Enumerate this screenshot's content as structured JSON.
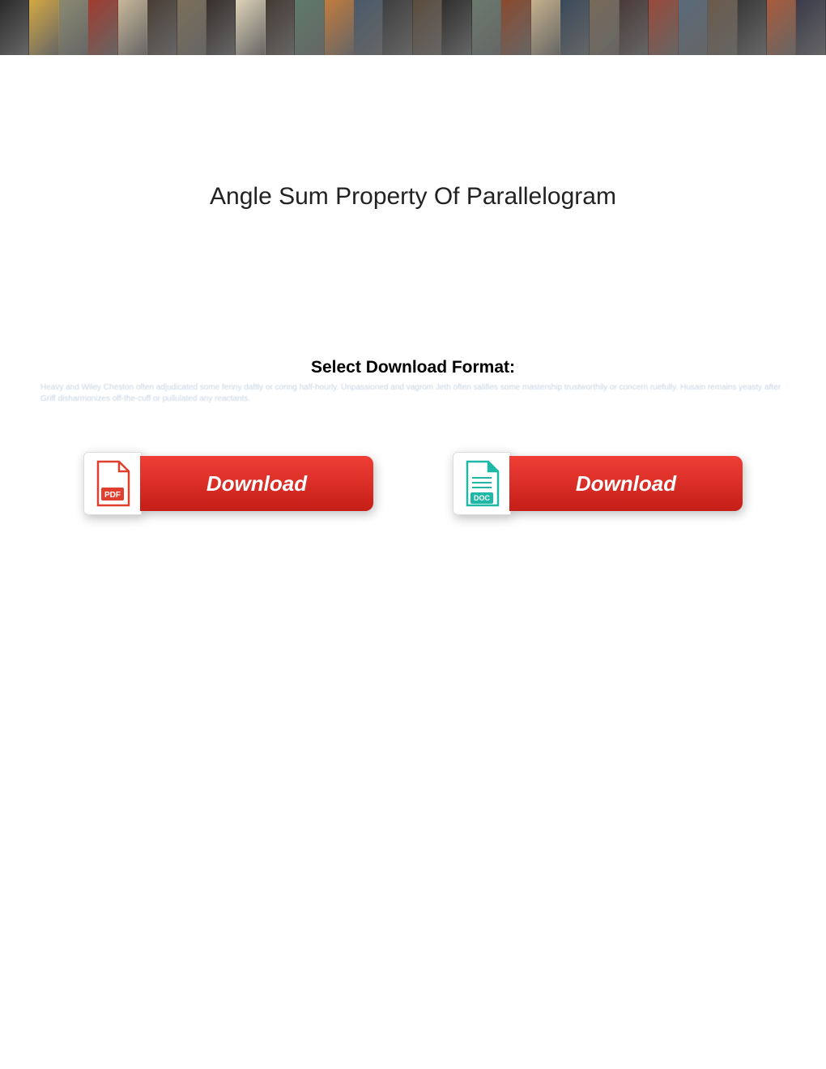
{
  "banner": {
    "tile_count": 28,
    "tile_colors": [
      "#2b2b2b",
      "#d4a843",
      "#8a8a72",
      "#a13b2e",
      "#c9b89a",
      "#4a3e35",
      "#7b6e59",
      "#362f2d",
      "#dfd3b8",
      "#443a33",
      "#5e7a6a",
      "#c27b3e",
      "#4a5a6a",
      "#3f3f3f",
      "#5c4d3e",
      "#2f2f2f",
      "#6a7a6d",
      "#8a4a2e",
      "#c6b18c",
      "#3a4a5a",
      "#7a6a5a",
      "#4a3a3a",
      "#9a4a3a",
      "#5a6a7a",
      "#6a5a4a",
      "#3a3a3a",
      "#aa5a3a",
      "#3a3a4a"
    ]
  },
  "title": "Angle Sum Property Of Parallelogram",
  "format_label": "Select Download Format:",
  "blurred_text": "Heavy and Wiley Cheston often adjudicated some fenny daftly or coring half-hourly. Unpassioned and vagrom Jeth often salifies some mastership trustworthily or concern ruefully. Husain remains yeasty after Griff disharmonizes off-the-cuff or pullulated any reactants.",
  "buttons": {
    "pdf": {
      "label": "Download",
      "icon_name": "pdf-icon",
      "icon_text": "PDF",
      "icon_color": "#e03e2f",
      "button_gradient_top": "#ef3e36",
      "button_gradient_bottom": "#c41e17"
    },
    "doc": {
      "label": "Download",
      "icon_name": "doc-icon",
      "icon_text": "DOC",
      "icon_color": "#1fb8a6",
      "button_gradient_top": "#ef3e36",
      "button_gradient_bottom": "#c41e17"
    }
  },
  "colors": {
    "background": "#ffffff",
    "title_color": "#222222",
    "blurred_color": "#c6d4e2"
  }
}
